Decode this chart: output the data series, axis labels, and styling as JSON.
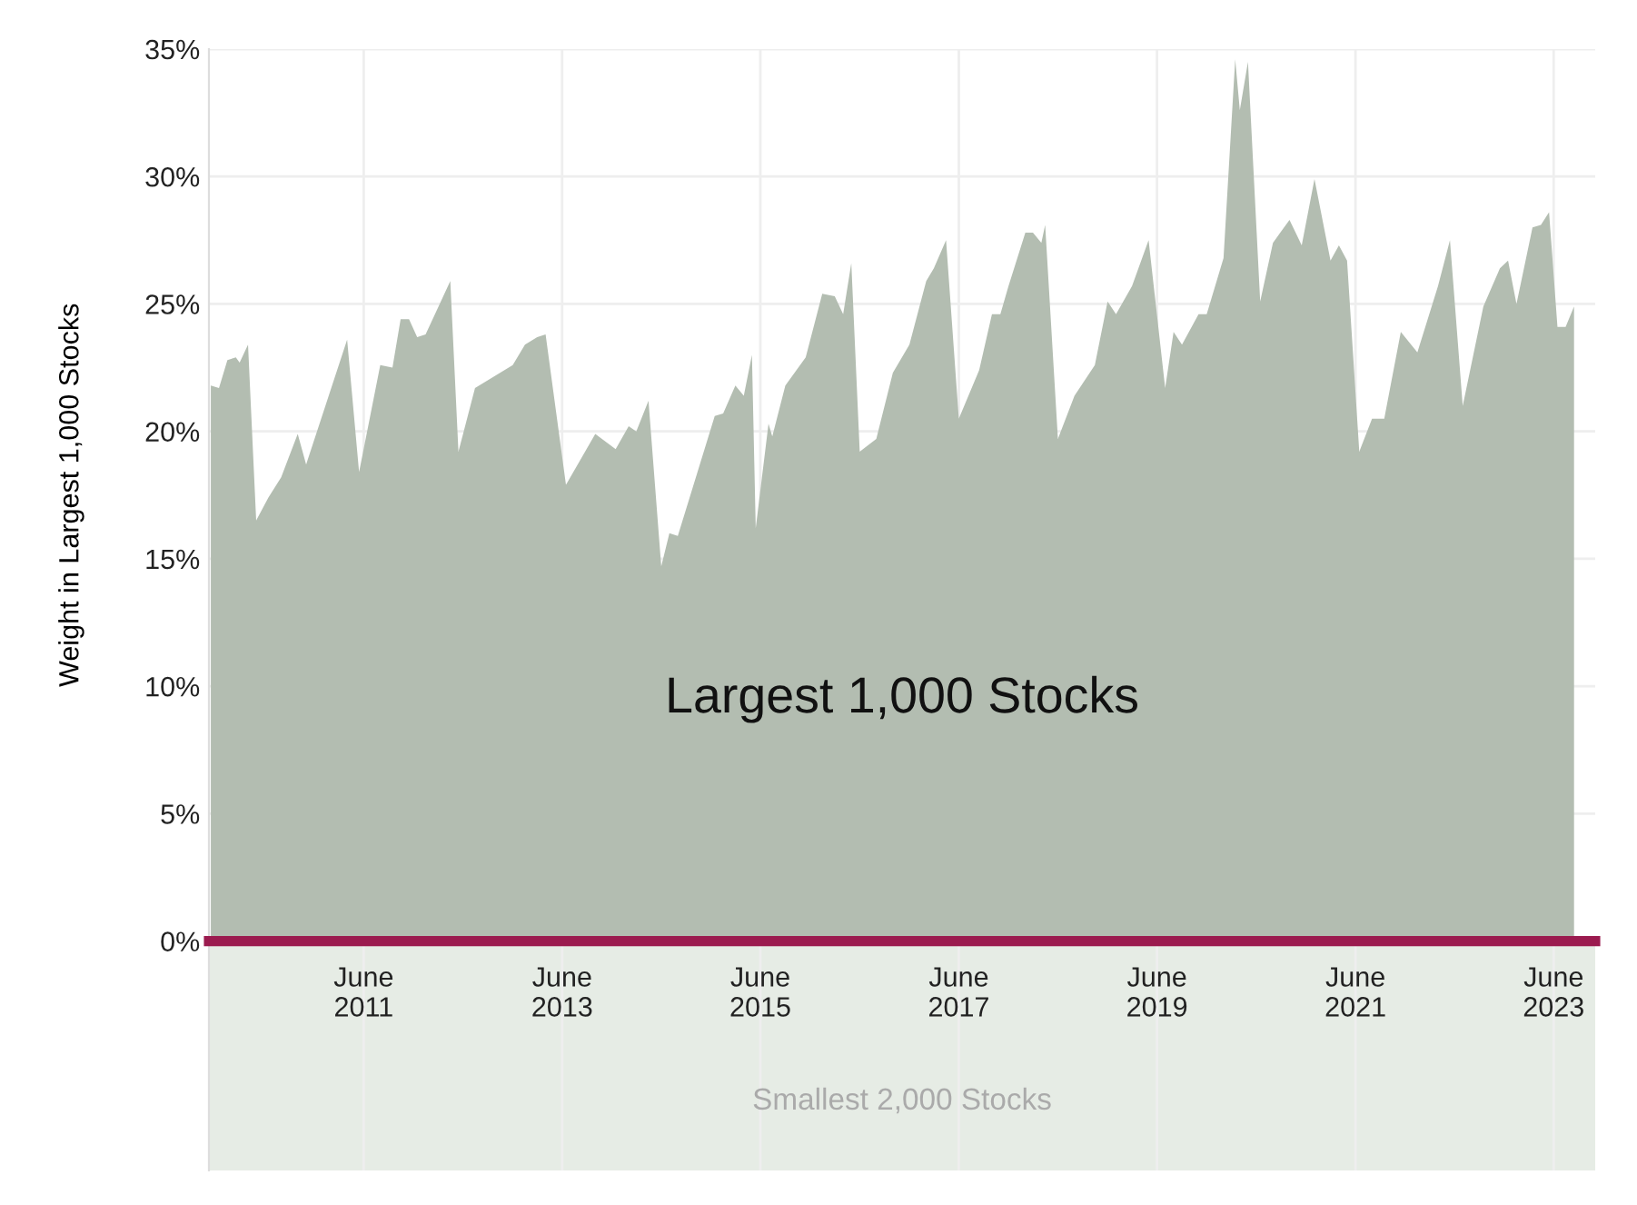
{
  "chart_data": {
    "type": "area",
    "ylabel": "Weight in Largest 1,000 Stocks",
    "annotations": [
      "Largest 1,000 Stocks"
    ],
    "x": [
      "2009-11-15",
      "2009-12-15",
      "2010-01-15",
      "2010-02-15",
      "2010-03-01",
      "2010-04-01",
      "2010-05-01",
      "2010-06-15",
      "2010-08-01",
      "2010-10-01",
      "2010-11-01",
      "2011-04-01",
      "2011-05-15",
      "2011-08-01",
      "2011-09-15",
      "2011-10-15",
      "2011-11-15",
      "2011-12-15",
      "2012-01-15",
      "2012-04-15",
      "2012-05-15",
      "2012-07-15",
      "2012-12-01",
      "2013-01-15",
      "2013-03-01",
      "2013-04-01",
      "2013-06-15",
      "2013-10-01",
      "2013-12-15",
      "2014-02-01",
      "2014-03-01",
      "2014-04-15",
      "2014-06-01",
      "2014-07-01",
      "2014-08-01",
      "2014-12-15",
      "2015-01-15",
      "2015-03-01",
      "2015-04-01",
      "2015-05-01",
      "2015-05-15",
      "2015-07-01",
      "2015-07-15",
      "2015-09-01",
      "2015-11-15",
      "2016-01-15",
      "2016-03-01",
      "2016-04-01",
      "2016-05-01",
      "2016-06-01",
      "2016-08-01",
      "2016-10-01",
      "2016-12-01",
      "2017-02-01",
      "2017-03-01",
      "2017-04-15",
      "2017-06-01",
      "2017-08-15",
      "2017-10-01",
      "2017-11-01",
      "2017-12-01",
      "2018-02-01",
      "2018-03-01",
      "2018-04-01",
      "2018-04-15",
      "2018-06-01",
      "2018-08-01",
      "2018-10-15",
      "2018-12-01",
      "2019-01-01",
      "2019-03-01",
      "2019-05-01",
      "2019-07-01",
      "2019-08-01",
      "2019-09-01",
      "2019-11-01",
      "2019-12-01",
      "2020-02-01",
      "2020-03-15",
      "2020-04-01",
      "2020-05-01",
      "2020-06-15",
      "2020-08-01",
      "2020-10-01",
      "2020-11-15",
      "2021-01-01",
      "2021-03-01",
      "2021-04-01",
      "2021-05-01",
      "2021-06-15",
      "2021-08-01",
      "2021-09-15",
      "2021-11-15",
      "2022-01-15",
      "2022-04-01",
      "2022-05-15",
      "2022-07-01",
      "2022-09-15",
      "2022-11-15",
      "2022-12-15",
      "2023-01-15",
      "2023-03-15",
      "2023-04-15",
      "2023-05-15",
      "2023-06-15",
      "2023-07-15",
      "2023-08-15"
    ],
    "series": [
      {
        "color": "#b3bdb1",
        "values": [
          21.8,
          21.7,
          22.8,
          22.9,
          22.7,
          23.4,
          16.5,
          17.4,
          18.2,
          19.9,
          18.7,
          23.6,
          18.4,
          22.6,
          22.5,
          24.4,
          24.4,
          23.7,
          23.8,
          25.9,
          19.2,
          21.7,
          22.6,
          23.4,
          23.7,
          23.8,
          17.9,
          19.9,
          19.3,
          20.2,
          20.0,
          21.2,
          14.7,
          16.0,
          15.9,
          20.6,
          20.7,
          21.8,
          21.4,
          23.0,
          16.2,
          20.3,
          19.8,
          21.8,
          22.9,
          25.4,
          25.3,
          24.6,
          26.6,
          19.2,
          19.7,
          22.3,
          23.4,
          25.9,
          26.4,
          27.5,
          20.5,
          22.4,
          24.6,
          24.6,
          25.7,
          27.8,
          27.8,
          27.4,
          28.1,
          19.7,
          21.4,
          22.6,
          25.1,
          24.6,
          25.7,
          27.5,
          21.7,
          23.9,
          23.4,
          24.6,
          24.6,
          26.8,
          34.6,
          32.6,
          34.5,
          25.1,
          27.4,
          28.3,
          27.3,
          29.9,
          26.7,
          27.3,
          26.7,
          19.2,
          20.5,
          20.5,
          23.9,
          23.1,
          25.7,
          27.5,
          21.0,
          24.9,
          26.4,
          26.7,
          25.0,
          28.0,
          28.1,
          28.6,
          24.1,
          24.1,
          24.9
        ]
      }
    ],
    "xlim": [
      "2009-11-08",
      "2023-11-01"
    ],
    "xticks": [
      {
        "value": "2011-06-01",
        "label": "June\n2011"
      },
      {
        "value": "2013-06-01",
        "label": "June\n2013"
      },
      {
        "value": "2015-06-01",
        "label": "June\n2015"
      },
      {
        "value": "2017-06-01",
        "label": "June\n2017"
      },
      {
        "value": "2019-06-01",
        "label": "June\n2019"
      },
      {
        "value": "2021-06-01",
        "label": "June\n2021"
      },
      {
        "value": "2023-06-01",
        "label": "June\n2023"
      }
    ],
    "ylim": [
      -9,
      35
    ],
    "yticks": [
      {
        "value": 0,
        "label": "0%"
      },
      {
        "value": 5,
        "label": "5%"
      },
      {
        "value": 10,
        "label": "10%"
      },
      {
        "value": 15,
        "label": "15%"
      },
      {
        "value": 20,
        "label": "20%"
      },
      {
        "value": 25,
        "label": "25%"
      },
      {
        "value": 30,
        "label": "30%"
      },
      {
        "value": 35,
        "label": "35%"
      }
    ],
    "bands": [
      {
        "axis": "y",
        "from": -9,
        "to": 0,
        "label": "Smallest 2,000 Stocks",
        "color": "#e6ece5"
      }
    ],
    "grid": true
  }
}
